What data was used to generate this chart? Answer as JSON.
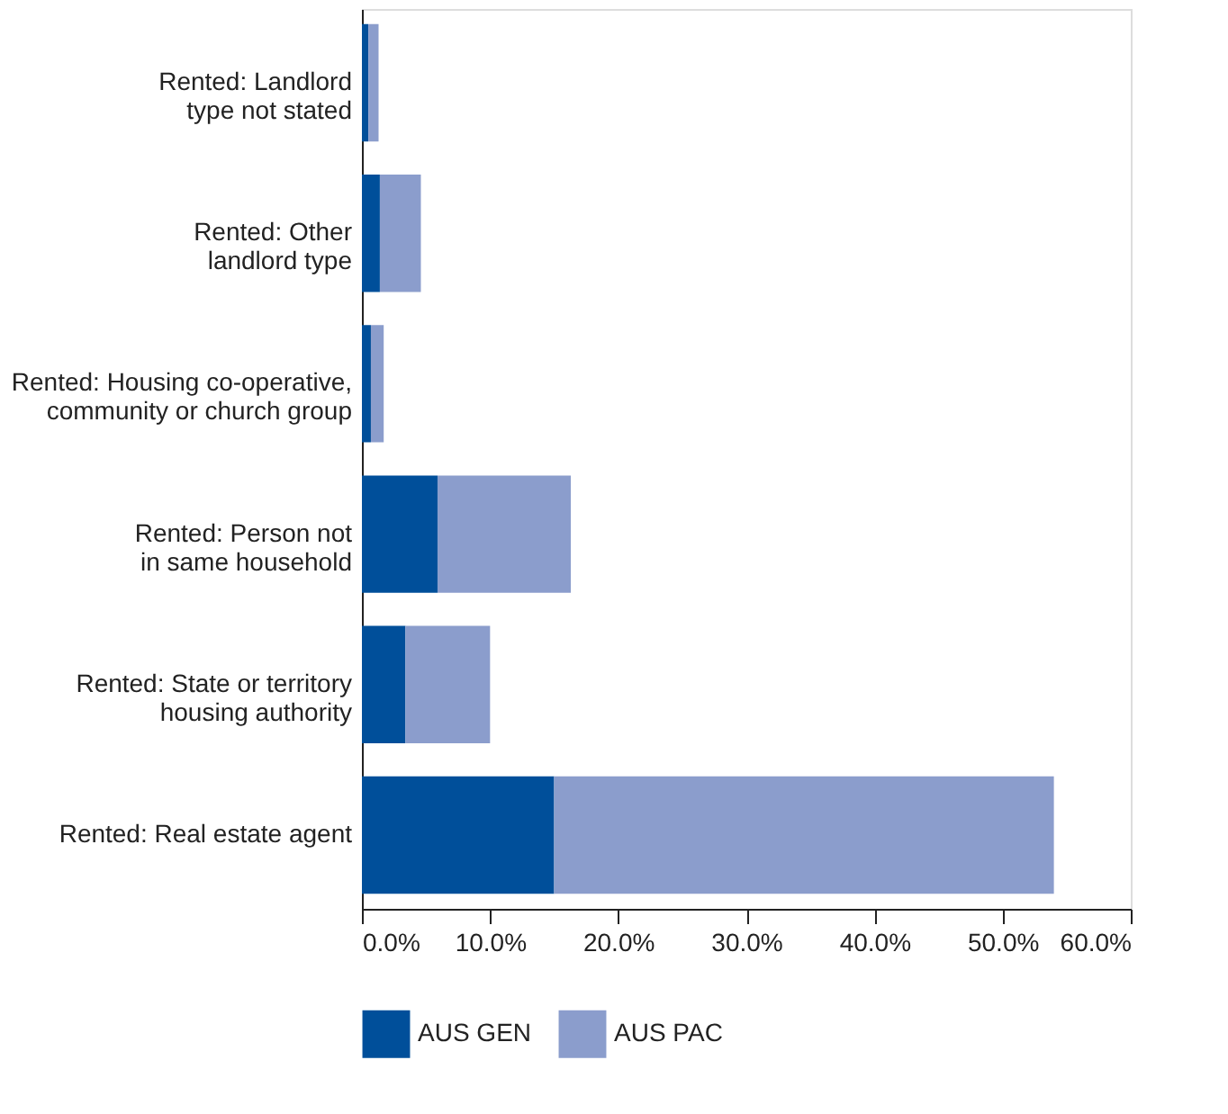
{
  "chart_data": {
    "type": "bar",
    "orientation": "horizontal",
    "stacked": true,
    "categories": [
      "Rented: Landlord\ntype not stated",
      "Rented: Other\nlandlord type",
      "Rented: Housing co-operative,\ncommunity or church group",
      "Rented: Person not\nin same household",
      "Rented: State or territory\nhousing authority",
      "Rented: Real estate agent"
    ],
    "series": [
      {
        "name": "AUS GEN",
        "color": "#004f9a",
        "values": [
          0.5,
          1.4,
          0.7,
          5.9,
          3.4,
          15.0
        ]
      },
      {
        "name": "AUS PAC",
        "color": "#8b9dcc",
        "values": [
          0.8,
          3.2,
          1.0,
          10.4,
          6.6,
          39.0
        ]
      }
    ],
    "xlim": [
      0,
      60
    ],
    "xticks": [
      {
        "value": 0,
        "label": "0.0%"
      },
      {
        "value": 10,
        "label": "10.0%"
      },
      {
        "value": 20,
        "label": "20.0%"
      },
      {
        "value": 30,
        "label": "30.0%"
      },
      {
        "value": 40,
        "label": "40.0%"
      },
      {
        "value": 50,
        "label": "50.0%"
      },
      {
        "value": 60,
        "label": "60.0%"
      }
    ],
    "grid": false,
    "legend": "bottom"
  }
}
